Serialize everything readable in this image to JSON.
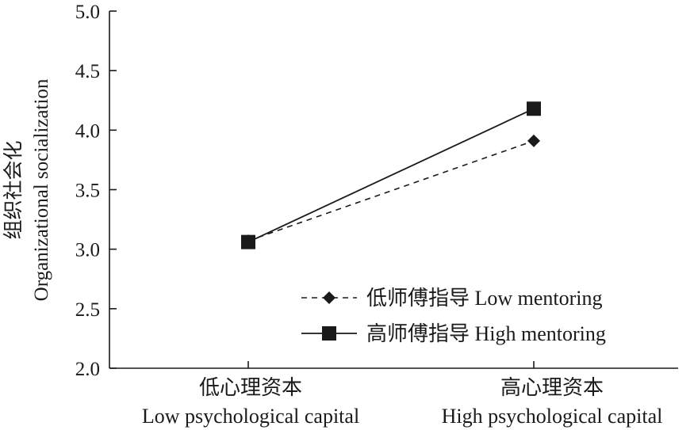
{
  "chart_data": {
    "type": "line",
    "title": "",
    "ylabel_zh": "组织社会化",
    "ylabel_en": "Organizational socialization",
    "categories": [
      {
        "zh": "低心理资本",
        "en": "Low psychological capital"
      },
      {
        "zh": "高心理资本",
        "en": "High psychological capital"
      }
    ],
    "ylim": [
      2.0,
      5.0
    ],
    "yticks": [
      "2.0",
      "2.5",
      "3.0",
      "3.5",
      "4.0",
      "4.5",
      "5.0"
    ],
    "grid": false,
    "legend_position": "bottom-right",
    "series": [
      {
        "name": "低师傅指导 Low mentoring",
        "values": [
          3.07,
          3.91
        ],
        "line": "dashed",
        "marker": "diamond",
        "color": "#1a1a1a"
      },
      {
        "name": "高师傅指导 High mentoring",
        "values": [
          3.06,
          4.18
        ],
        "line": "solid",
        "marker": "square",
        "color": "#1a1a1a"
      }
    ]
  }
}
